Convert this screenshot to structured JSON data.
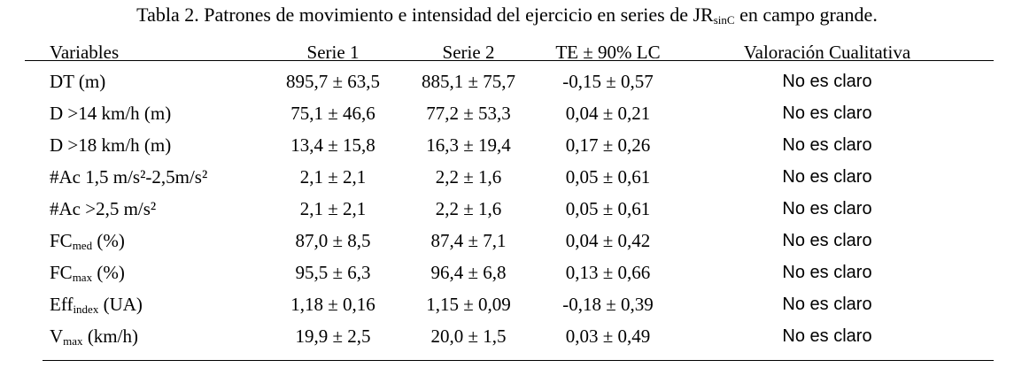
{
  "caption": {
    "prefix": "Tabla 2. Patrones de movimiento e intensidad del ejercicio en series de JR",
    "sub": "sinC",
    "suffix": " en campo grande."
  },
  "table": {
    "headers": [
      "Variables",
      "Serie 1",
      "Serie 2",
      "TE ± 90% LC",
      "Valoración Cualitativa"
    ],
    "rows": [
      {
        "label": "DT (m)",
        "sub": "",
        "suffix": "",
        "serie1": "895,7 ± 63,5",
        "serie2": "885,1 ± 75,7",
        "te": "-0,15 ± 0,57",
        "qual": "No es claro"
      },
      {
        "label": "D >14 km/h (m)",
        "sub": "",
        "suffix": "",
        "serie1": "75,1 ± 46,6",
        "serie2": "77,2 ± 53,3",
        "te": "0,04 ± 0,21",
        "qual": "No es claro"
      },
      {
        "label": "D >18 km/h (m)",
        "sub": "",
        "suffix": "",
        "serie1": "13,4 ± 15,8",
        "serie2": "16,3 ± 19,4",
        "te": "0,17 ± 0,26",
        "qual": "No es claro"
      },
      {
        "label": "#Ac 1,5 m/s²-2,5m/s²",
        "sub": "",
        "suffix": "",
        "serie1": "2,1 ± 2,1",
        "serie2": "2,2 ± 1,6",
        "te": "0,05 ± 0,61",
        "qual": "No es claro"
      },
      {
        "label": "#Ac >2,5 m/s²",
        "sub": "",
        "suffix": "",
        "serie1": "2,1 ± 2,1",
        "serie2": "2,2 ± 1,6",
        "te": "0,05 ± 0,61",
        "qual": "No es claro"
      },
      {
        "label": "FC",
        "sub": "med",
        "suffix": " (%)",
        "serie1": "87,0 ± 8,5",
        "serie2": "87,4 ± 7,1",
        "te": "0,04 ± 0,42",
        "qual": "No es claro"
      },
      {
        "label": "FC",
        "sub": "max",
        "suffix": " (%)",
        "serie1": "95,5 ± 6,3",
        "serie2": "96,4 ± 6,8",
        "te": "0,13 ± 0,66",
        "qual": "No es claro"
      },
      {
        "label": "Eff",
        "sub": "index",
        "suffix": " (UA)",
        "serie1": "1,18 ± 0,16",
        "serie2": "1,15 ± 0,09",
        "te": "-0,18 ± 0,39",
        "qual": "No es claro"
      },
      {
        "label": "V",
        "sub": "max",
        "suffix": " (km/h)",
        "serie1": "19,9 ± 2,5",
        "serie2": "20,0 ± 1,5",
        "te": "0,03 ± 0,49",
        "qual": "No es claro"
      }
    ]
  }
}
